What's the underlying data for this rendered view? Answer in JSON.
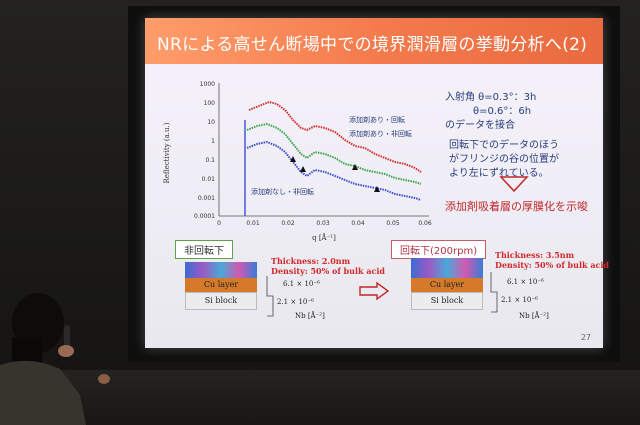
{
  "slide": {
    "title": "NRによる高せん断場中での境界潤滑層の挙動分析へ(2)",
    "page_number": "27"
  },
  "graph": {
    "ylabel": "Reflectivity (a.u.)",
    "xlabel": "q [Å⁻¹]",
    "y_ticks": [
      "1000",
      "100",
      "10",
      "1",
      "0.1",
      "0.01",
      "0.001",
      "0.0001"
    ],
    "x_ticks": [
      "0",
      "0.01",
      "0.02",
      "0.03",
      "0.04",
      "0.05",
      "0.06"
    ],
    "legend_rot_add": "添加剤あり・回転",
    "legend_nonrot_add": "添加剤あり・非回転",
    "legend_nonrot_none": "添加剤なし・非回転"
  },
  "notes": {
    "line1": "入射角 θ=0.3°：3h",
    "line2": "θ=0.6°：6h",
    "line3": "のデータを接合",
    "para1": "回転下でのデータのほう",
    "para2": "がフリンジの谷の位置が",
    "para3": "より左にずれている。",
    "conclusion": "添加剤吸着層の厚膜化を示唆"
  },
  "panel_left": {
    "label": "非回転下",
    "thickness": "Thickness: 2.0nm",
    "density": "Density:  50% of bulk acid",
    "cu": "Cu layer",
    "si": "Si   block",
    "nb1": "6.1 × 10⁻⁶",
    "nb2": "2.1 × 10⁻⁶",
    "nb_axis": "Nb [Å⁻²]"
  },
  "panel_right": {
    "label": "回転下(200rpm)",
    "thickness": "Thickness: 3.5nm",
    "density": "Density:  50% of bulk acid",
    "cu": "Cu layer",
    "si": "Si   block",
    "nb1": "6.1 × 10⁻⁶",
    "nb2": "2.1 × 10⁻⁶",
    "nb_axis": "Nb [Å⁻²]"
  },
  "colors": {
    "title_orange": "#f47b4d",
    "series_red": "#d0302a",
    "series_green": "#3aa64a",
    "series_blue": "#3b4fd0",
    "accent_red": "#c0292a"
  }
}
